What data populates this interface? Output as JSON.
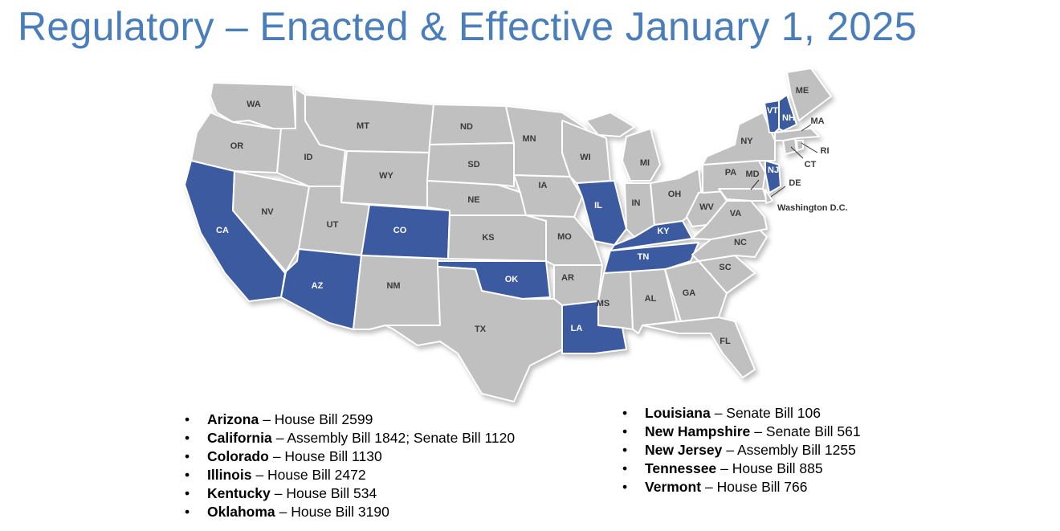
{
  "title": "Regulatory – Enacted & Effective January 1, 2025",
  "map": {
    "base_color": "#c0c0c0",
    "highlight_color": "#3c5aa0",
    "states": [
      {
        "label": "WA",
        "highlighted": false
      },
      {
        "label": "OR",
        "highlighted": false
      },
      {
        "label": "CA",
        "highlighted": true
      },
      {
        "label": "NV",
        "highlighted": false
      },
      {
        "label": "ID",
        "highlighted": false
      },
      {
        "label": "MT",
        "highlighted": false
      },
      {
        "label": "WY",
        "highlighted": false
      },
      {
        "label": "UT",
        "highlighted": false
      },
      {
        "label": "CO",
        "highlighted": true
      },
      {
        "label": "AZ",
        "highlighted": true
      },
      {
        "label": "NM",
        "highlighted": false
      },
      {
        "label": "ND",
        "highlighted": false
      },
      {
        "label": "SD",
        "highlighted": false
      },
      {
        "label": "NE",
        "highlighted": false
      },
      {
        "label": "KS",
        "highlighted": false
      },
      {
        "label": "OK",
        "highlighted": true
      },
      {
        "label": "TX",
        "highlighted": false
      },
      {
        "label": "MN",
        "highlighted": false
      },
      {
        "label": "IA",
        "highlighted": false
      },
      {
        "label": "MO",
        "highlighted": false
      },
      {
        "label": "AR",
        "highlighted": false
      },
      {
        "label": "LA",
        "highlighted": true
      },
      {
        "label": "WI",
        "highlighted": false
      },
      {
        "label": "IL",
        "highlighted": true
      },
      {
        "label": "MI",
        "highlighted": false
      },
      {
        "label": "IN",
        "highlighted": false
      },
      {
        "label": "OH",
        "highlighted": false
      },
      {
        "label": "KY",
        "highlighted": true
      },
      {
        "label": "TN",
        "highlighted": true
      },
      {
        "label": "MS",
        "highlighted": false
      },
      {
        "label": "AL",
        "highlighted": false
      },
      {
        "label": "GA",
        "highlighted": false
      },
      {
        "label": "FL",
        "highlighted": false
      },
      {
        "label": "SC",
        "highlighted": false
      },
      {
        "label": "NC",
        "highlighted": false
      },
      {
        "label": "VA",
        "highlighted": false
      },
      {
        "label": "WV",
        "highlighted": false
      },
      {
        "label": "PA",
        "highlighted": false
      },
      {
        "label": "NY",
        "highlighted": false
      },
      {
        "label": "MD",
        "highlighted": false
      },
      {
        "label": "DE",
        "highlighted": false
      },
      {
        "label": "NJ",
        "highlighted": true
      },
      {
        "label": "CT",
        "highlighted": false
      },
      {
        "label": "RI",
        "highlighted": false
      },
      {
        "label": "MA",
        "highlighted": false
      },
      {
        "label": "VT",
        "highlighted": true
      },
      {
        "label": "NH",
        "highlighted": true
      },
      {
        "label": "ME",
        "highlighted": false
      }
    ],
    "dc_label": "Washington D.C."
  },
  "legend": {
    "columns": [
      [
        {
          "state": "Arizona",
          "detail": "– House Bill 2599"
        },
        {
          "state": "California",
          "detail": "– Assembly Bill 1842; Senate Bill 1120"
        },
        {
          "state": "Colorado",
          "detail": "– House Bill 1130"
        },
        {
          "state": "Illinois",
          "detail": "– House Bill 2472"
        },
        {
          "state": "Kentucky",
          "detail": "– House Bill 534"
        },
        {
          "state": "Oklahoma",
          "detail": "– House Bill 3190"
        }
      ],
      [
        {
          "state": "Louisiana",
          "detail": "– Senate Bill 106"
        },
        {
          "state": "New Hampshire",
          "detail": "– Senate Bill 561"
        },
        {
          "state": "New Jersey",
          "detail": "– Assembly Bill 1255"
        },
        {
          "state": "Tennessee",
          "detail": "– House Bill 885"
        },
        {
          "state": "Vermont",
          "detail": "– House Bill 766"
        }
      ]
    ]
  }
}
